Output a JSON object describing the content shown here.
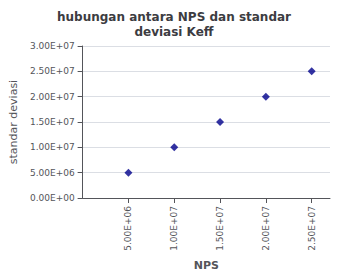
{
  "chart_data": {
    "type": "scatter",
    "title": "hubungan antara NPS dan standar\ndeviasi Keff",
    "xlabel": "NPS",
    "ylabel": "standar deviasi",
    "x": [
      5000000,
      10000000,
      15000000,
      20000000,
      25000000
    ],
    "values": [
      5000000,
      10000000,
      15000000,
      20000000,
      25000000
    ],
    "color": "#00008B",
    "marker": "diamond",
    "xlim": [
      0,
      27000000
    ],
    "xticks": [
      {
        "value": 5000000,
        "label": "5.00E+06"
      },
      {
        "value": 10000000,
        "label": "1.00E+07"
      },
      {
        "value": 15000000,
        "label": "1.50E+07"
      },
      {
        "value": 20000000,
        "label": "2.00E+07"
      },
      {
        "value": 25000000,
        "label": "2.50E+07"
      }
    ],
    "ylim": [
      0,
      30000000
    ],
    "yticks": [
      {
        "value": 0,
        "label": "0.00E+00"
      },
      {
        "value": 5000000,
        "label": "5.00E+06"
      },
      {
        "value": 10000000,
        "label": "1.00E+07"
      },
      {
        "value": 15000000,
        "label": "1.50E+07"
      },
      {
        "value": 20000000,
        "label": "2.00E+07"
      },
      {
        "value": 25000000,
        "label": "2.50E+07"
      },
      {
        "value": 30000000,
        "label": "3.00E+07"
      }
    ],
    "grid": true
  }
}
